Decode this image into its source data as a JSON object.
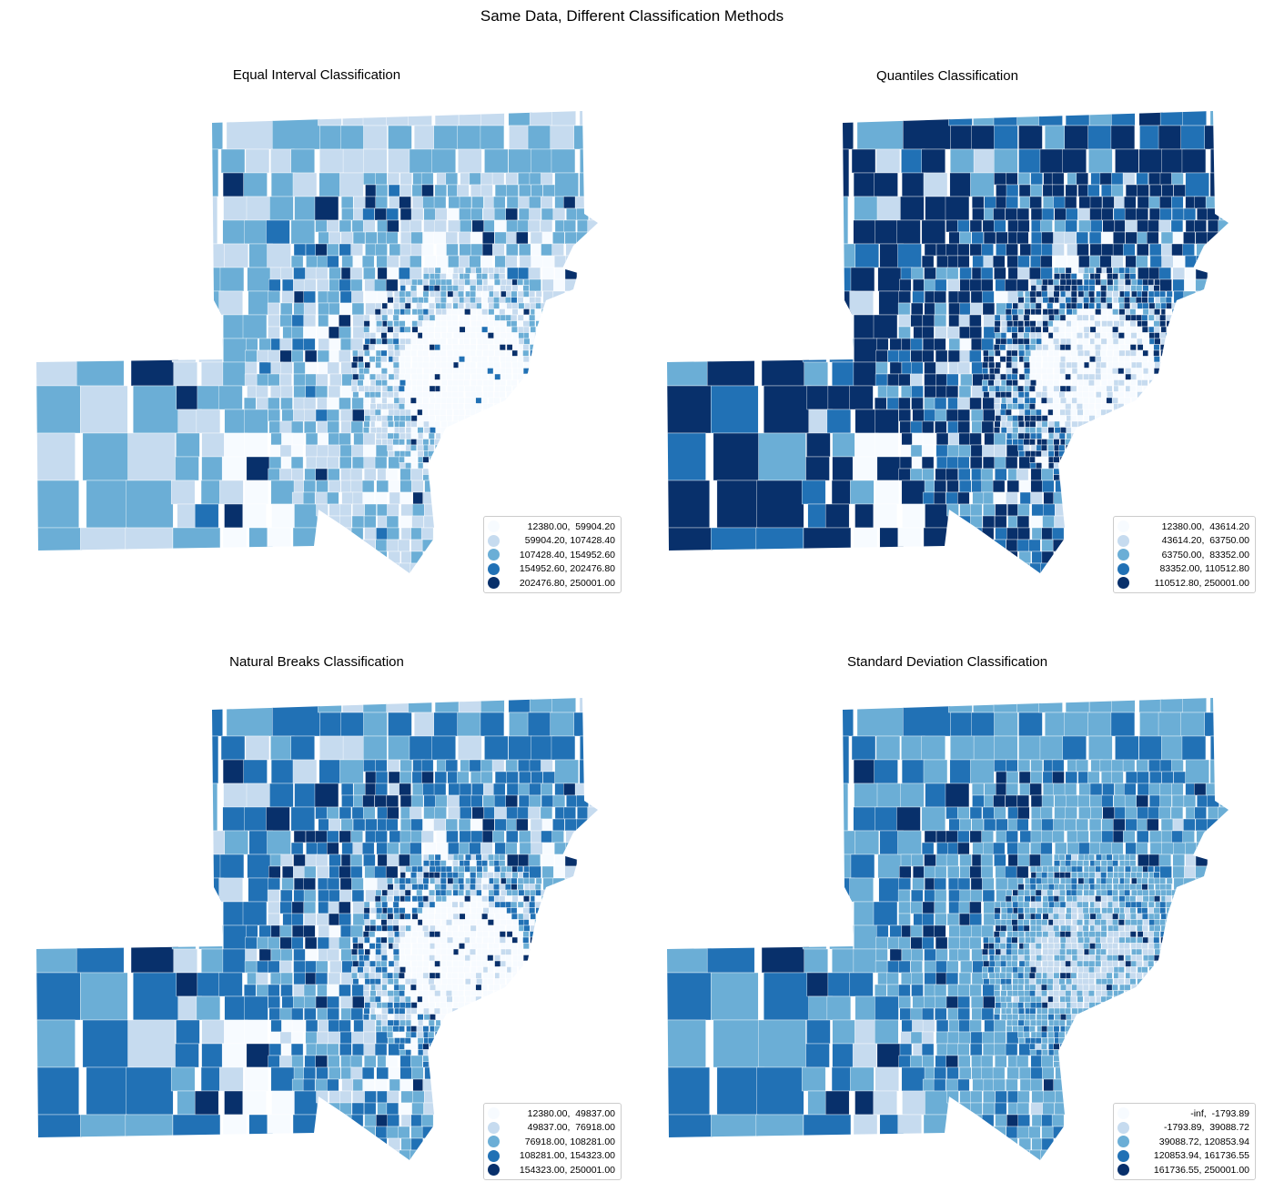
{
  "figure": {
    "title": "Same Data, Different Classification Methods"
  },
  "colors": [
    "#f7fbff",
    "#c6dbef",
    "#6baed6",
    "#2171b5",
    "#08306b"
  ],
  "panels": [
    {
      "title": "Equal Interval Classification",
      "breaks": [
        12380.0,
        59904.2,
        107428.4,
        154952.6,
        202476.8,
        250001.0
      ],
      "legend": [
        "12380.00,  59904.20",
        "59904.20, 107428.40",
        "107428.40, 154952.60",
        "154952.60, 202476.80",
        "202476.80, 250001.00"
      ]
    },
    {
      "title": "Quantiles Classification",
      "breaks": [
        12380.0,
        43614.2,
        63750.0,
        83352.0,
        110512.8,
        250001.0
      ],
      "legend": [
        "12380.00,  43614.20",
        "43614.20,  63750.00",
        "63750.00,  83352.00",
        "83352.00, 110512.80",
        "110512.80, 250001.00"
      ]
    },
    {
      "title": "Natural Breaks Classification",
      "breaks": [
        12380.0,
        49837.0,
        76918.0,
        108281.0,
        154323.0,
        250001.0
      ],
      "legend": [
        "12380.00,  49837.00",
        "49837.00,  76918.00",
        "76918.00, 108281.00",
        "108281.00, 154323.00",
        "154323.00, 250001.00"
      ]
    },
    {
      "title": "Standard Deviation Classification",
      "breaks": [
        -1000000000000.0,
        -1793.89,
        39088.72,
        120853.94,
        161736.55,
        250001.0
      ],
      "legend": [
        "-inf,  -1793.89",
        "-1793.89,  39088.72",
        "39088.72, 120853.94",
        "120853.94, 161736.55",
        "161736.55, 250001.00"
      ]
    }
  ]
}
